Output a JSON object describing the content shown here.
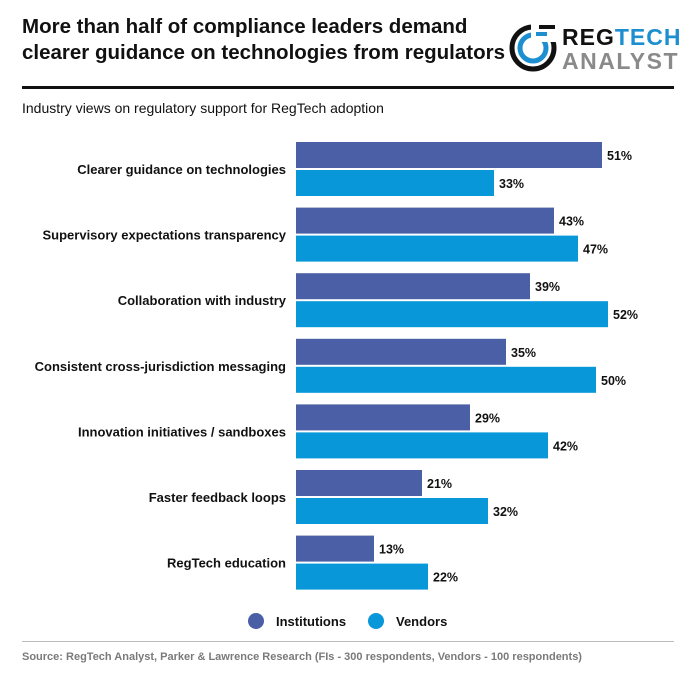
{
  "title_lines": [
    "More than half of compliance leaders demand",
    "clearer guidance on technologies from regulators"
  ],
  "logo": {
    "line1_a": "REG",
    "line1_b": "TECH",
    "line2": "ANALYST"
  },
  "subtitle": "Industry views on regulatory support for RegTech adoption",
  "colors": {
    "institutions": "#4A5FA5",
    "vendors": "#0897D8",
    "logo_blue": "#1D8FD0",
    "text": "#111111"
  },
  "chart_data": {
    "type": "bar",
    "orientation": "horizontal",
    "categories": [
      "Clearer guidance on technologies",
      "Supervisory expectations transparency",
      "Collaboration with industry",
      "Consistent cross-jurisdiction messaging",
      "Innovation initiatives / sandboxes",
      "Faster feedback loops",
      "RegTech education"
    ],
    "series": [
      {
        "name": "Institutions",
        "values": [
          51,
          43,
          39,
          35,
          29,
          21,
          13
        ],
        "labels": [
          "51%",
          "43%",
          "39%",
          "35%",
          "29%",
          "21%",
          "13%"
        ]
      },
      {
        "name": "Vendors",
        "values": [
          33,
          47,
          52,
          50,
          42,
          32,
          22
        ],
        "labels": [
          "33%",
          "47%",
          "52%",
          "50%",
          "42%",
          "32%",
          "22%"
        ]
      }
    ],
    "xlim": [
      0,
      100
    ],
    "grid": false,
    "legend": "bottom-center"
  },
  "source": "Source: RegTech Analyst, Parker & Lawrence Research (FIs - 300 respondents, Vendors - 100 respondents)"
}
